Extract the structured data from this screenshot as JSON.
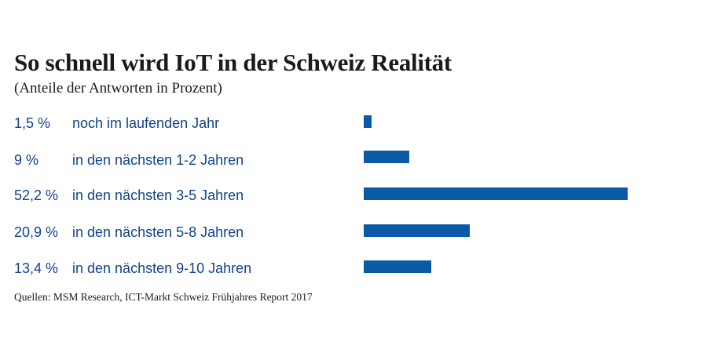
{
  "chart_data": {
    "type": "bar",
    "orientation": "horizontal",
    "title": "So schnell wird IoT in der Schweiz Realität",
    "subtitle": "(Anteile der Antworten in Prozent)",
    "unit": "%",
    "series": [
      {
        "name": "Anteile der Antworten",
        "values": [
          1.5,
          9,
          52.2,
          20.9,
          13.4
        ]
      }
    ],
    "categories": [
      "noch im laufenden Jahr",
      "in den nächsten 1-2 Jahren",
      "in den nächsten 3-5 Jahren",
      "in den nächsten 5-8 Jahren",
      "in den nächsten 9-10 Jahren"
    ],
    "value_labels": [
      "1,5 %",
      "9 %",
      "52,2 %",
      "20,9 %",
      "13,4 %"
    ],
    "xlim": [
      0,
      52.2
    ],
    "grid": false,
    "legend": "none",
    "bar_color": "#0a5aa5",
    "text_color": "#12428a",
    "source": "Quellen: MSM Research, ICT-Markt Schweiz Frühjahres Report 2017"
  }
}
